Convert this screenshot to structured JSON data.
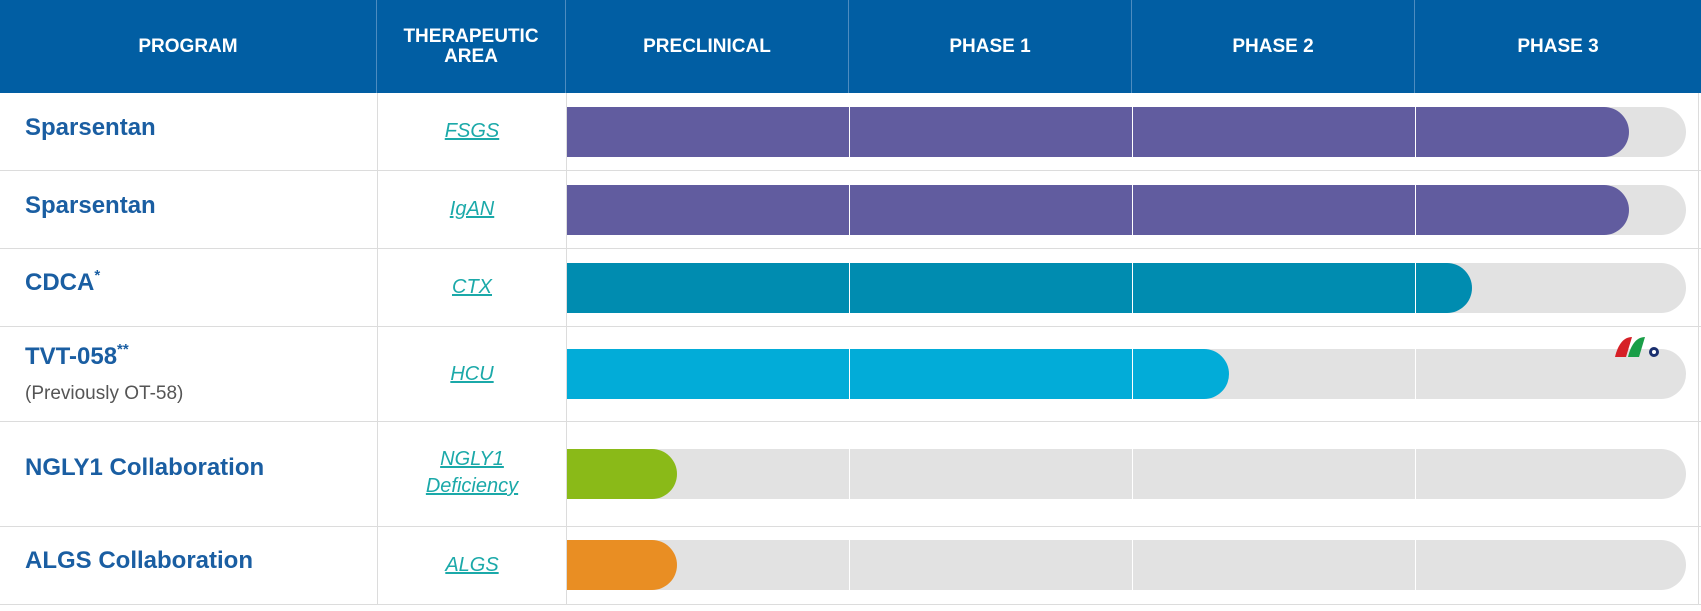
{
  "header": {
    "program": "PROGRAM",
    "therapeutic_area_line1": "THERAPEUTIC",
    "therapeutic_area_line2": "AREA",
    "phases": [
      "PRECLINICAL",
      "PHASE 1",
      "PHASE 2",
      "PHASE 3"
    ]
  },
  "rows": [
    {
      "program": "Sparsentan",
      "program_mark": "",
      "subtitle": "",
      "area_line1": "FSGS",
      "area_line2": "",
      "progress": 0.949,
      "color": "#615c9f"
    },
    {
      "program": "Sparsentan",
      "program_mark": "",
      "subtitle": "",
      "area_line1": "IgAN",
      "area_line2": "",
      "progress": 0.949,
      "color": "#615c9f"
    },
    {
      "program": "CDCA",
      "program_mark": "*",
      "subtitle": "",
      "area_line1": "CTX",
      "area_line2": "",
      "progress": 0.809,
      "color": "#008cb0"
    },
    {
      "program": "TVT-058",
      "program_mark": "**",
      "subtitle": "(Previously OT-58)",
      "area_line1": "HCU",
      "area_line2": "",
      "progress": 0.592,
      "color": "#02acd8"
    },
    {
      "program": "NGLY1 Collaboration",
      "program_mark": "",
      "subtitle": "",
      "area_line1": "NGLY1",
      "area_line2": "Deficiency",
      "progress": 0.098,
      "color": "#8aba18"
    },
    {
      "program": "ALGS Collaboration",
      "program_mark": "",
      "subtitle": "",
      "area_line1": "ALGS",
      "area_line2": "",
      "progress": 0.098,
      "color": "#e98e23"
    }
  ],
  "colors": {
    "header_bg": "#015ea3",
    "track": "#e2e2e2",
    "program_text": "#1a5ea2",
    "area_link": "#1ba9a9"
  },
  "logo": {
    "icon": "watermark-logo-icon",
    "colors": [
      "#d62027",
      "#1a9e48",
      "#1a2f6e"
    ]
  }
}
